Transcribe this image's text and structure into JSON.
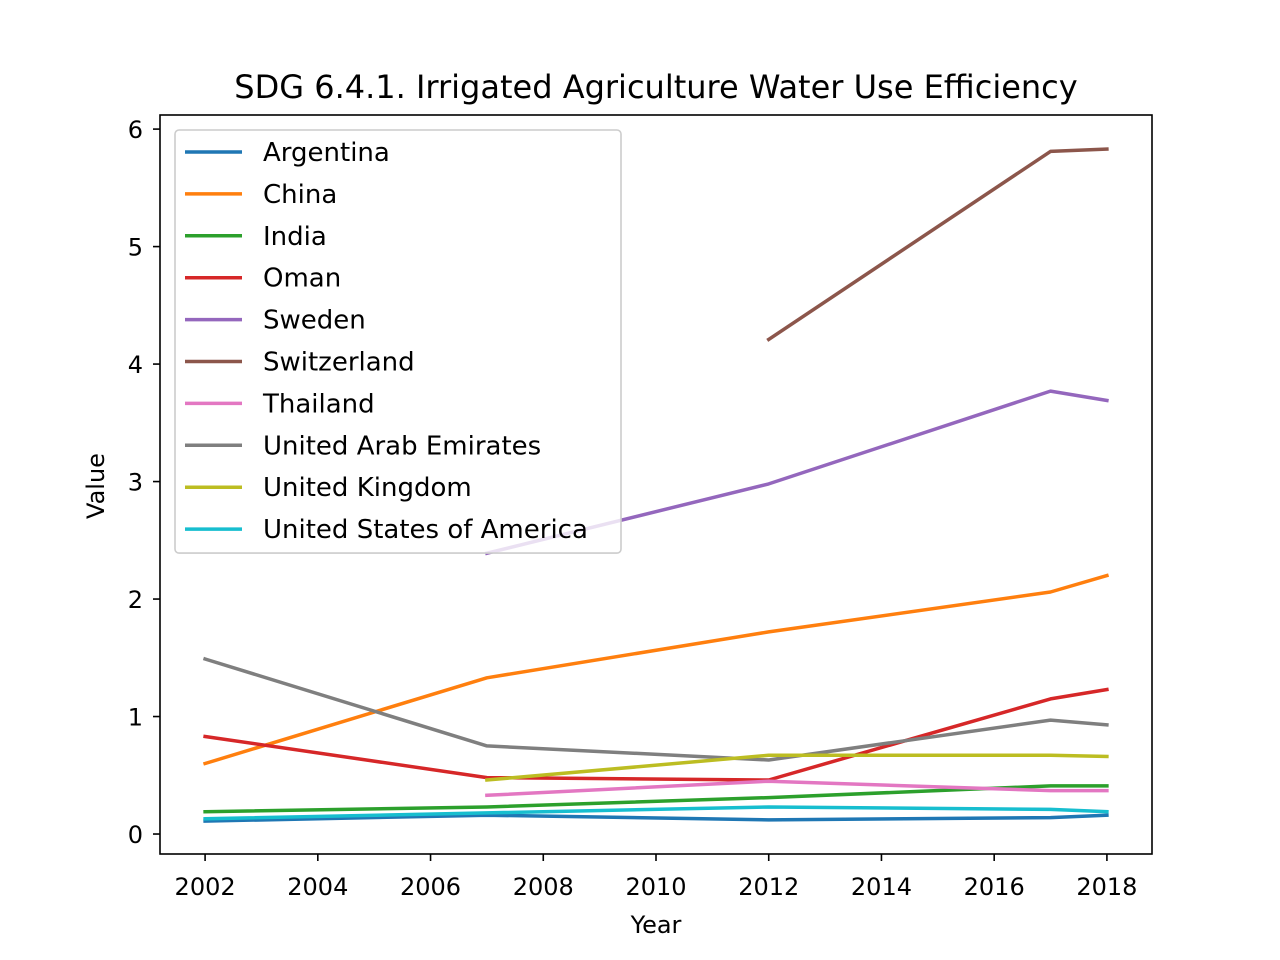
{
  "chart_data": {
    "type": "line",
    "title": "SDG 6.4.1. Irrigated Agriculture Water Use Efficiency",
    "xlabel": "Year",
    "ylabel": "Value",
    "xlim": [
      2001.2,
      2018.8
    ],
    "ylim": [
      -0.17,
      6.12
    ],
    "xticks": [
      2002,
      2004,
      2006,
      2008,
      2010,
      2012,
      2014,
      2016,
      2018
    ],
    "yticks": [
      0,
      1,
      2,
      3,
      4,
      5,
      6
    ],
    "grid": false,
    "legend_position": "top-left",
    "series": [
      {
        "name": "Argentina",
        "color": "#1f77b4",
        "x": [
          2002,
          2007,
          2012,
          2017,
          2018
        ],
        "y": [
          0.11,
          0.16,
          0.12,
          0.14,
          0.16
        ]
      },
      {
        "name": "China",
        "color": "#ff7f0e",
        "x": [
          2002,
          2007,
          2012,
          2017,
          2018
        ],
        "y": [
          0.6,
          1.33,
          1.72,
          2.06,
          2.2
        ]
      },
      {
        "name": "India",
        "color": "#2ca02c",
        "x": [
          2002,
          2007,
          2012,
          2017,
          2018
        ],
        "y": [
          0.19,
          0.23,
          0.31,
          0.41,
          0.41
        ]
      },
      {
        "name": "Oman",
        "color": "#d62728",
        "x": [
          2002,
          2007,
          2012,
          2017,
          2018
        ],
        "y": [
          0.83,
          0.48,
          0.46,
          1.15,
          1.23
        ]
      },
      {
        "name": "Sweden",
        "color": "#9467bd",
        "x": [
          2007,
          2012,
          2017,
          2018
        ],
        "y": [
          2.39,
          2.98,
          3.77,
          3.69
        ]
      },
      {
        "name": "Switzerland",
        "color": "#8c564b",
        "x": [
          2012,
          2017,
          2018
        ],
        "y": [
          4.21,
          5.81,
          5.83
        ]
      },
      {
        "name": "Thailand",
        "color": "#e377c2",
        "x": [
          2007,
          2012,
          2017,
          2018
        ],
        "y": [
          0.33,
          0.45,
          0.37,
          0.37
        ]
      },
      {
        "name": "United Arab Emirates",
        "color": "#7f7f7f",
        "x": [
          2002,
          2007,
          2012,
          2017,
          2018
        ],
        "y": [
          1.49,
          0.75,
          0.63,
          0.97,
          0.93
        ]
      },
      {
        "name": "United Kingdom",
        "color": "#bcbd22",
        "x": [
          2007,
          2012,
          2017,
          2018
        ],
        "y": [
          0.46,
          0.67,
          0.67,
          0.66
        ]
      },
      {
        "name": "United States of America",
        "color": "#17becf",
        "x": [
          2002,
          2007,
          2012,
          2017,
          2018
        ],
        "y": [
          0.13,
          0.18,
          0.23,
          0.21,
          0.19
        ]
      }
    ]
  }
}
